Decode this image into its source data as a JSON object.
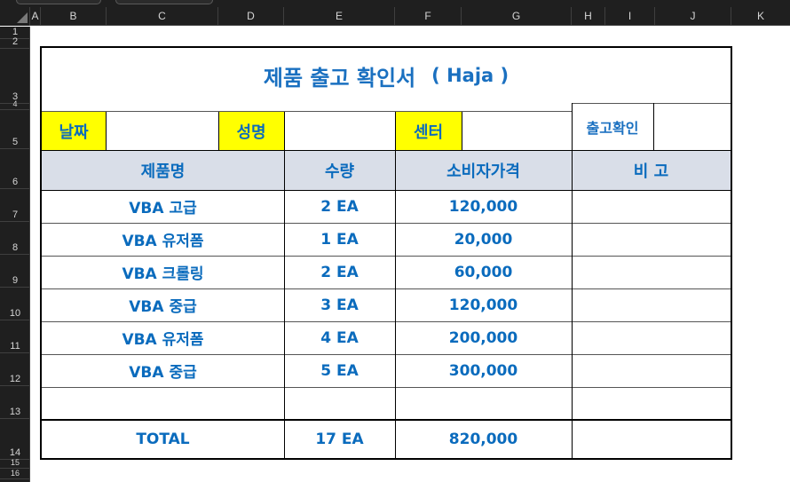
{
  "sheet": {
    "columns": [
      "A",
      "B",
      "C",
      "D",
      "E",
      "F",
      "G",
      "H",
      "I",
      "J",
      "K"
    ],
    "rows": [
      "1",
      "2",
      "3",
      "4",
      "5",
      "6",
      "7",
      "8",
      "9",
      "10",
      "11",
      "12",
      "13",
      "14",
      "15",
      "16"
    ]
  },
  "form": {
    "title": "제품 출고 확인서",
    "title_suffix": "( Haja )",
    "labels": {
      "date": "날짜",
      "name": "성명",
      "center": "센터",
      "confirm": "출고확인"
    },
    "headers": {
      "product": "제품명",
      "quantity": "수량",
      "price": "소비자가격",
      "note": "비 고"
    },
    "items": [
      {
        "product": "VBA 고급",
        "quantity": "2 EA",
        "price": "120,000"
      },
      {
        "product": "VBA 유저폼",
        "quantity": "1 EA",
        "price": "20,000"
      },
      {
        "product": "VBA 크롤링",
        "quantity": "2 EA",
        "price": "60,000"
      },
      {
        "product": "VBA 중급",
        "quantity": "3 EA",
        "price": "120,000"
      },
      {
        "product": "VBA 유저폼",
        "quantity": "4 EA",
        "price": "200,000"
      },
      {
        "product": "VBA 중급",
        "quantity": "5 EA",
        "price": "300,000"
      }
    ],
    "total": {
      "label": "TOTAL",
      "quantity": "17 EA",
      "price": "820,000"
    }
  }
}
